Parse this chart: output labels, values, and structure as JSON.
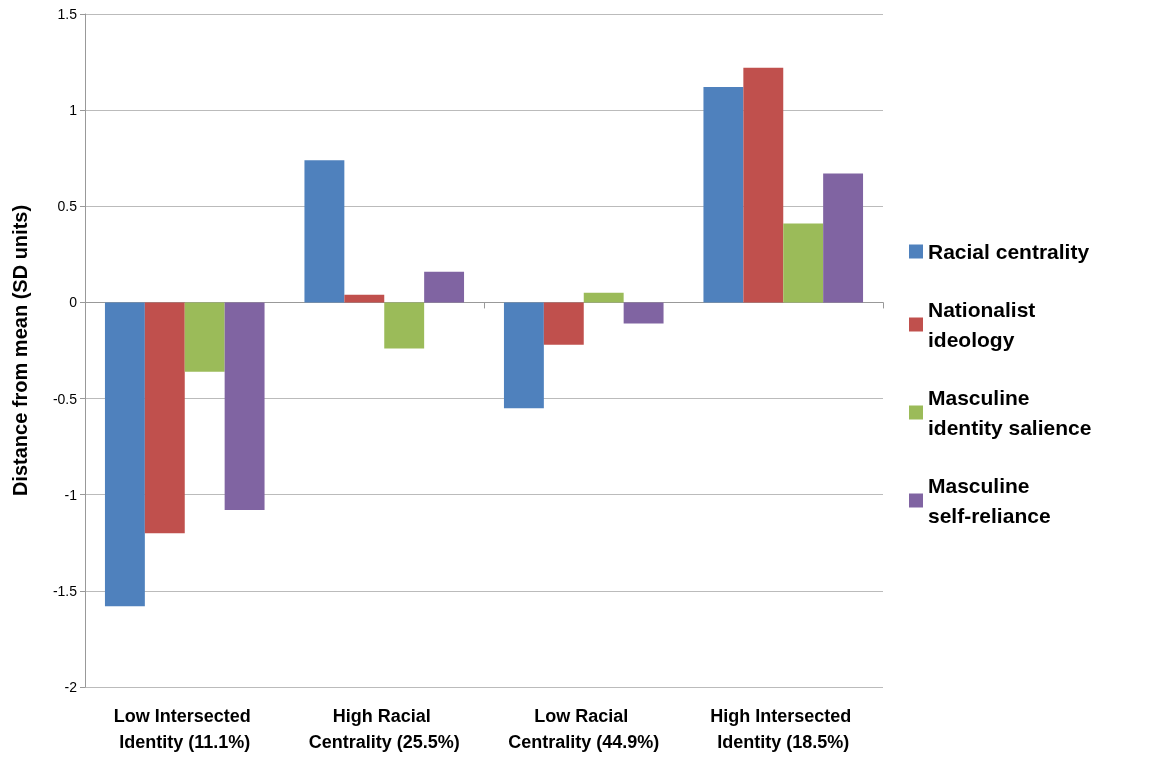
{
  "chart_data": {
    "type": "bar",
    "ylabel": "Distance from mean (SD units)",
    "categories": [
      "Low Intersected Identity (11.1%)",
      "High Racial Centrality (25.5%)",
      "Low Racial Centrality (44.9%)",
      "High Intersected Identity (18.5%)"
    ],
    "series": [
      {
        "name": "Racial centrality",
        "color": "#4f81bd",
        "values": [
          -1.58,
          0.74,
          -0.55,
          1.12
        ]
      },
      {
        "name": "Nationalist ideology",
        "color": "#c0504d",
        "values": [
          -1.2,
          0.04,
          -0.22,
          1.22
        ]
      },
      {
        "name": "Masculine identity salience",
        "color": "#9bbb59",
        "values": [
          -0.36,
          -0.24,
          0.05,
          0.41
        ]
      },
      {
        "name": "Masculine self-reliance",
        "color": "#8064a2",
        "values": [
          -1.08,
          0.16,
          -0.11,
          0.67
        ]
      }
    ],
    "ylim": [
      -2,
      1.5
    ],
    "yticks": [
      -2,
      -1.5,
      -1,
      -0.5,
      0,
      0.5,
      1,
      1.5
    ],
    "grid": "y",
    "legend": "right"
  }
}
